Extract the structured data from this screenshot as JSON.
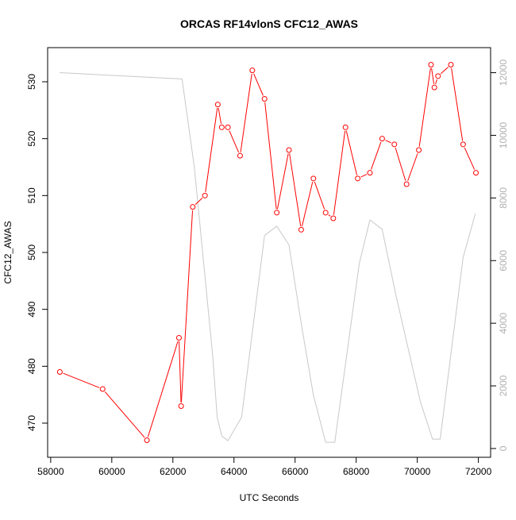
{
  "chart_data": {
    "type": "line",
    "title": "ORCAS RF14vlonS CFC12_AWAS",
    "xlabel": "UTC Seconds",
    "ylabel": "CFC12_AWAS",
    "xlim": [
      57900,
      72400
    ],
    "ylim": [
      464.0,
      536.0
    ],
    "y2lim": [
      -280,
      12800
    ],
    "x_ticks": [
      58000,
      60000,
      62000,
      64000,
      66000,
      68000,
      70000,
      72000
    ],
    "y_ticks": [
      470,
      480,
      490,
      500,
      510,
      520,
      530
    ],
    "y2_ticks": [
      0,
      2000,
      4000,
      6000,
      8000,
      10000,
      12000
    ],
    "grid": false,
    "colors": {
      "series": "#ff0000",
      "secondary": "#c8c8c8",
      "axis": "#000000",
      "right_ticks": "#b0b0b0"
    },
    "series": [
      {
        "axis": "left",
        "x": [
          58300,
          59700,
          61150,
          62200,
          62270,
          62650,
          63050,
          63470,
          63600,
          63800,
          64200,
          64600,
          65000,
          65400,
          65800,
          66200,
          66600,
          67000,
          67250,
          67650,
          68050,
          68450,
          68850,
          69250,
          69650,
          70050,
          70450,
          70560,
          70680,
          71100,
          71500,
          71920
        ],
        "y": [
          479,
          476,
          467,
          485,
          473,
          508,
          510,
          526,
          522,
          522,
          517,
          532,
          527,
          507,
          518,
          504,
          513,
          507,
          506,
          522,
          513,
          514,
          520,
          519,
          512,
          518,
          533,
          529,
          531,
          533,
          519,
          514
        ]
      },
      {
        "axis": "right",
        "x": [
          58300,
          62300,
          62700,
          63000,
          63300,
          63450,
          63600,
          63800,
          64250,
          65000,
          65400,
          65800,
          66200,
          66600,
          67000,
          67300,
          68100,
          68450,
          68850,
          69300,
          70100,
          70500,
          70750,
          71500,
          71900
        ],
        "y": [
          12000,
          11800,
          9000,
          6000,
          3000,
          1000,
          400,
          250,
          1000,
          6800,
          7100,
          6500,
          4000,
          1700,
          200,
          200,
          5900,
          7300,
          7000,
          4900,
          1500,
          300,
          300,
          6100,
          7500
        ]
      }
    ]
  }
}
